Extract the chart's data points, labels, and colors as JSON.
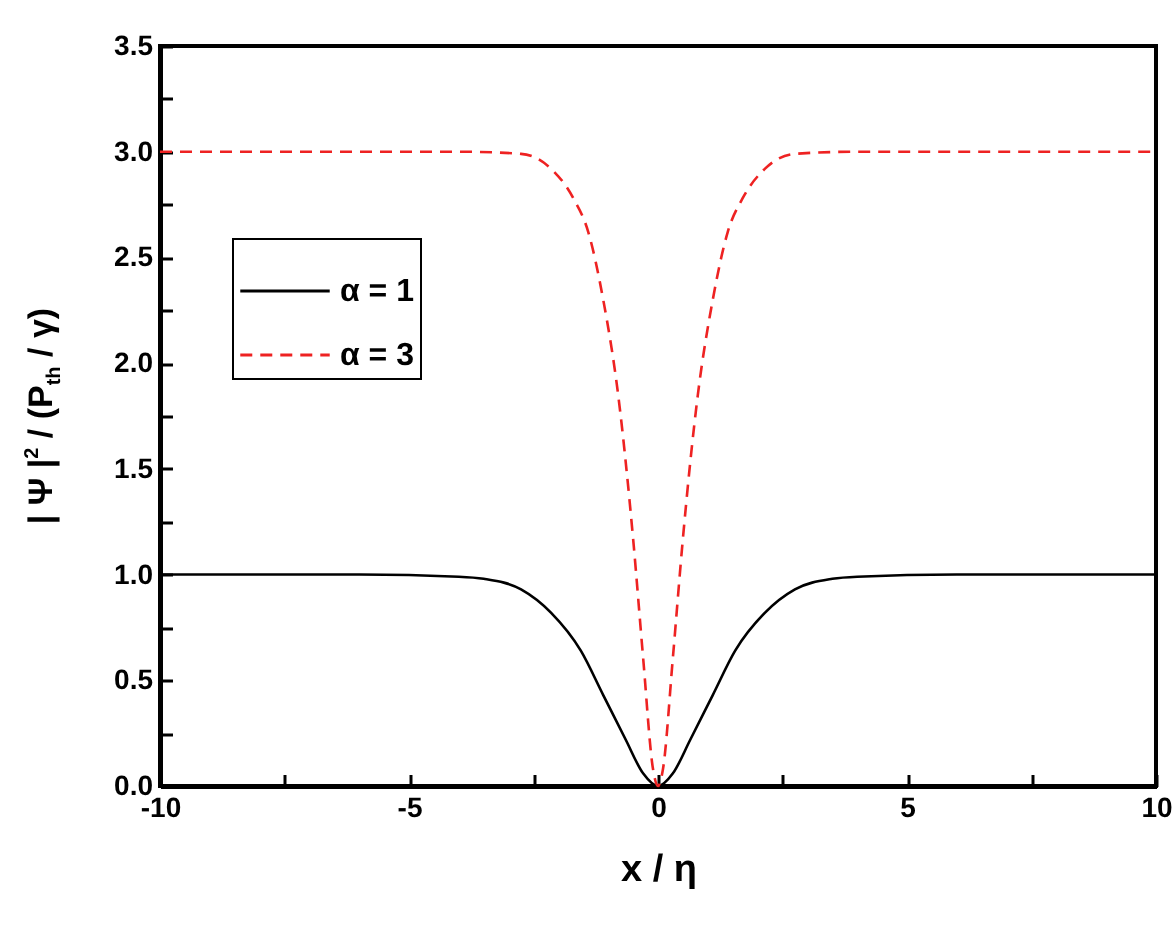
{
  "chart_data": {
    "type": "line",
    "xlabel": "x / η",
    "ylabel": "| Ψ |$^{2}$ / (P$_{th}$ / γ)",
    "xlim": [
      -10,
      10
    ],
    "xticks": [
      -10,
      {
        "value": -7.5,
        "label": null
      },
      -5,
      {
        "value": -2.5,
        "label": null
      },
      0,
      {
        "value": 2.5,
        "label": null
      },
      5,
      {
        "value": 7.5,
        "label": null
      },
      10
    ],
    "ylim": [
      0,
      3.5
    ],
    "yticks": [
      {
        "value": 0,
        "label": "0.0"
      },
      {
        "value": 0.25,
        "label": null
      },
      0.5,
      {
        "value": 0.75,
        "label": null
      },
      {
        "value": 1,
        "label": "1.0"
      },
      {
        "value": 1.25,
        "label": null
      },
      1.5,
      {
        "value": 1.75,
        "label": null
      },
      {
        "value": 2,
        "label": "2.0"
      },
      {
        "value": 2.25,
        "label": null
      },
      2.5,
      {
        "value": 2.75,
        "label": null
      },
      {
        "value": 3,
        "label": "3.0"
      },
      {
        "value": 3.25,
        "label": null
      },
      3.5
    ],
    "legend": "top left",
    "grid": false,
    "marker": "none",
    "series": [
      {
        "name": "α = 1",
        "color": "#000000",
        "line_style": "solid",
        "x": [
          -10,
          -6,
          -4,
          -3.5,
          -2.75,
          -2.15,
          -1.55,
          -1.1,
          -0.65,
          -0.3,
          0,
          0.3,
          0.65,
          1.1,
          1.55,
          2.15,
          2.75,
          3.5,
          4,
          6,
          10
        ],
        "values": [
          1,
          1,
          0.99,
          0.98,
          0.93,
          0.82,
          0.64,
          0.43,
          0.22,
          0.06,
          0,
          0.06,
          0.22,
          0.43,
          0.64,
          0.82,
          0.93,
          0.98,
          0.99,
          1,
          1
        ]
      },
      {
        "name": "α = 3",
        "color": "#ee2222",
        "line_style": "dashed",
        "x": [
          -10,
          -4,
          -2.75,
          -2.15,
          -1.7,
          -1.4,
          -1.1,
          -0.8,
          -0.5,
          -0.3,
          -0.1,
          0,
          0.1,
          0.3,
          0.5,
          0.8,
          1.1,
          1.4,
          1.7,
          2.15,
          2.75,
          4,
          10
        ],
        "values": [
          3,
          3,
          2.99,
          2.92,
          2.78,
          2.62,
          2.3,
          1.85,
          1.17,
          0.61,
          0.08,
          0,
          0.08,
          0.61,
          1.17,
          1.85,
          2.3,
          2.62,
          2.78,
          2.92,
          2.99,
          3,
          3
        ]
      }
    ]
  }
}
